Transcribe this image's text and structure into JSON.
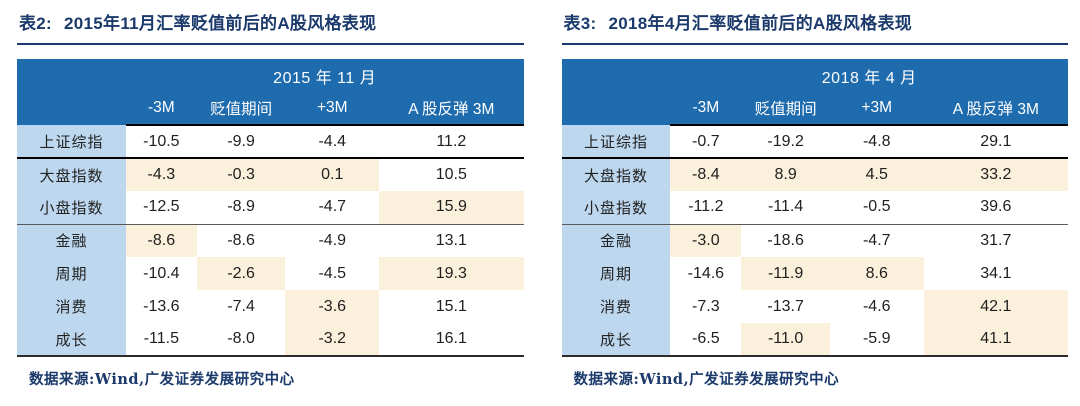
{
  "colors": {
    "header_bg": "#1e6bae",
    "header_text": "#ffffff",
    "label_bg": "#bdd7ee",
    "highlight_bg": "#faf0db",
    "title_navy": "#1b3a6b",
    "body_text": "#1f1f1f"
  },
  "tables": [
    {
      "title_prefix": "表2:",
      "title": "2015年11月汇率贬值前后的A股风格表现",
      "period_header": "2015 年 11 月",
      "columns": [
        "-3M",
        "贬值期间",
        "+3M",
        "A 股反弹 3M"
      ],
      "rows": [
        {
          "label": "上证综指",
          "values": [
            "-10.5",
            "-9.9",
            "-4.4",
            "11.2"
          ],
          "highlights": [
            false,
            false,
            false,
            false
          ]
        },
        {
          "label": "大盘指数",
          "values": [
            "-4.3",
            "-0.3",
            "0.1",
            "10.5"
          ],
          "highlights": [
            true,
            true,
            true,
            false
          ]
        },
        {
          "label": "小盘指数",
          "values": [
            "-12.5",
            "-8.9",
            "-4.7",
            "15.9"
          ],
          "highlights": [
            false,
            false,
            false,
            true
          ]
        },
        {
          "label": "金融",
          "values": [
            "-8.6",
            "-8.6",
            "-4.9",
            "13.1"
          ],
          "highlights": [
            true,
            false,
            false,
            false
          ]
        },
        {
          "label": "周期",
          "values": [
            "-10.4",
            "-2.6",
            "-4.5",
            "19.3"
          ],
          "highlights": [
            false,
            true,
            false,
            true
          ]
        },
        {
          "label": "消费",
          "values": [
            "-13.6",
            "-7.4",
            "-3.6",
            "15.1"
          ],
          "highlights": [
            false,
            false,
            true,
            false
          ]
        },
        {
          "label": "成长",
          "values": [
            "-11.5",
            "-8.0",
            "-3.2",
            "16.1"
          ],
          "highlights": [
            false,
            false,
            true,
            false
          ]
        }
      ],
      "source": "数据来源:Wind,广发证券发展研究中心"
    },
    {
      "title_prefix": "表3:",
      "title": "2018年4月汇率贬值前后的A股风格表现",
      "period_header": "2018 年 4 月",
      "columns": [
        "-3M",
        "贬值期间",
        "+3M",
        "A 股反弹 3M"
      ],
      "rows": [
        {
          "label": "上证综指",
          "values": [
            "-0.7",
            "-19.2",
            "-4.8",
            "29.1"
          ],
          "highlights": [
            false,
            false,
            false,
            false
          ]
        },
        {
          "label": "大盘指数",
          "values": [
            "-8.4",
            "8.9",
            "4.5",
            "33.2"
          ],
          "highlights": [
            true,
            true,
            true,
            true
          ]
        },
        {
          "label": "小盘指数",
          "values": [
            "-11.2",
            "-11.4",
            "-0.5",
            "39.6"
          ],
          "highlights": [
            false,
            false,
            false,
            false
          ]
        },
        {
          "label": "金融",
          "values": [
            "-3.0",
            "-18.6",
            "-4.7",
            "31.7"
          ],
          "highlights": [
            true,
            false,
            false,
            false
          ]
        },
        {
          "label": "周期",
          "values": [
            "-14.6",
            "-11.9",
            "8.6",
            "34.1"
          ],
          "highlights": [
            false,
            true,
            true,
            false
          ]
        },
        {
          "label": "消费",
          "values": [
            "-7.3",
            "-13.7",
            "-4.6",
            "42.1"
          ],
          "highlights": [
            false,
            false,
            false,
            true
          ]
        },
        {
          "label": "成长",
          "values": [
            "-6.5",
            "-11.0",
            "-5.9",
            "41.1"
          ],
          "highlights": [
            false,
            true,
            false,
            true
          ]
        }
      ],
      "source": "数据来源:Wind,广发证券发展研究中心"
    }
  ]
}
